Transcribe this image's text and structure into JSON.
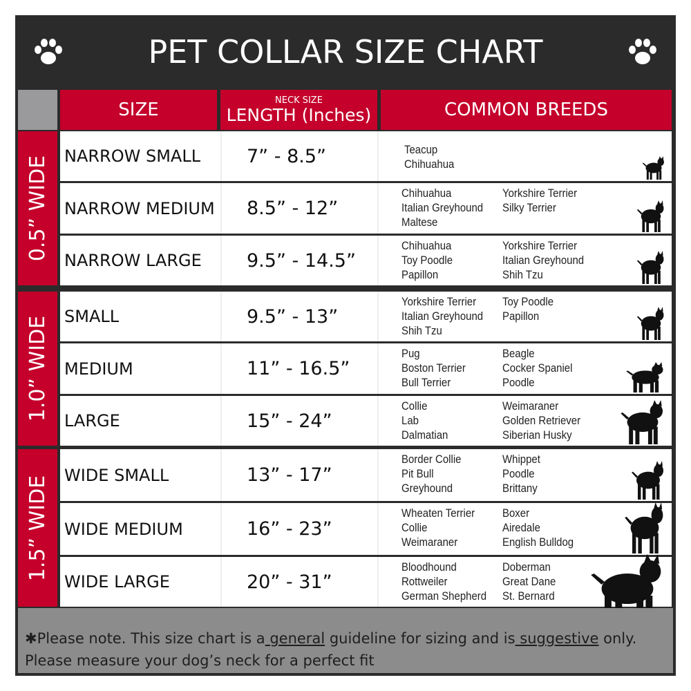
{
  "title": "PET COLLAR SIZE CHART",
  "icons": {
    "left": "paw-icon",
    "right": "paw-icon"
  },
  "colors": {
    "frame": "#2b2b2b",
    "accent_red": "#c4002b",
    "footer": "#8c8c8c"
  },
  "header": {
    "size": "SIZE",
    "length_small": "NECK SIZE",
    "length": "LENGTH (Inches)",
    "breeds": "COMMON BREEDS"
  },
  "groups": [
    {
      "label": "0.5” WIDE",
      "rows": [
        {
          "size": "NARROW SMALL",
          "length": "7” - 8.5”",
          "col1": [
            "Teacup",
            "Chihuahua"
          ],
          "col2": [],
          "dog": "yorkie-silhouette-icon"
        },
        {
          "size": "NARROW MEDIUM",
          "length": "8.5” - 12”",
          "col1": [
            "Chihuahua",
            "Italian Greyhound",
            "Maltese"
          ],
          "col2": [
            "Yorkshire Terrier",
            "Silky Terrier"
          ],
          "dog": "chihuahua-silhouette-icon"
        },
        {
          "size": "NARROW LARGE",
          "length": "9.5” - 14.5”",
          "col1": [
            "Chihuahua",
            "Toy Poodle",
            "Papillon"
          ],
          "col2": [
            "Yorkshire Terrier",
            "Italian Greyhound",
            "Shih Tzu"
          ],
          "dog": "pomeranian-silhouette-icon"
        }
      ]
    },
    {
      "label": "1.0” WIDE",
      "rows": [
        {
          "size": "SMALL",
          "length": "9.5” - 13”",
          "col1": [
            "Yorkshire Terrier",
            "Italian Greyhound",
            "Shih Tzu"
          ],
          "col2": [
            "Toy Poodle",
            "Papillon"
          ],
          "dog": "pomeranian-silhouette-icon"
        },
        {
          "size": "MEDIUM",
          "length": "11” - 16.5”",
          "col1": [
            "Pug",
            "Boston Terrier",
            "Bull Terrier"
          ],
          "col2": [
            "Beagle",
            "Cocker Spaniel",
            "Poodle"
          ],
          "dog": "dachshund-silhouette-icon"
        },
        {
          "size": "LARGE",
          "length": "15” - 24”",
          "col1": [
            "Collie",
            "Lab",
            "Dalmatian"
          ],
          "col2": [
            "Weimaraner",
            "Golden Retriever",
            "Siberian Husky"
          ],
          "dog": "shepherd-silhouette-icon"
        }
      ]
    },
    {
      "label": "1.5” WIDE",
      "rows": [
        {
          "size": "WIDE SMALL",
          "length": "13” - 17”",
          "col1": [
            "Border Collie",
            "Pit Bull",
            "Greyhound"
          ],
          "col2": [
            "Whippet",
            "Poodle",
            "Brittany"
          ],
          "dog": "bulldog-silhouette-icon"
        },
        {
          "size": "WIDE MEDIUM",
          "length": "16” - 23”",
          "col1": [
            "Wheaten Terrier",
            "Collie",
            "Weimaraner"
          ],
          "col2": [
            "Boxer",
            "Airedale",
            "English Bulldog"
          ],
          "dog": "pitbull-silhouette-icon"
        },
        {
          "size": "WIDE LARGE",
          "length": "20” - 31”",
          "col1": [
            "Bloodhound",
            "Rottweiler",
            "German Shepherd"
          ],
          "col2": [
            "Doberman",
            "Great Dane",
            "St. Bernard"
          ],
          "dog": "doberman-silhouette-icon"
        }
      ]
    }
  ],
  "footer": {
    "p1": "✱Please note. This size chart is a",
    "u1": " general",
    "p2": " guideline for sizing and is",
    "u2": " suggestive",
    "p3": " only.",
    "line2": "Please measure your dog’s neck for a perfect fit"
  }
}
